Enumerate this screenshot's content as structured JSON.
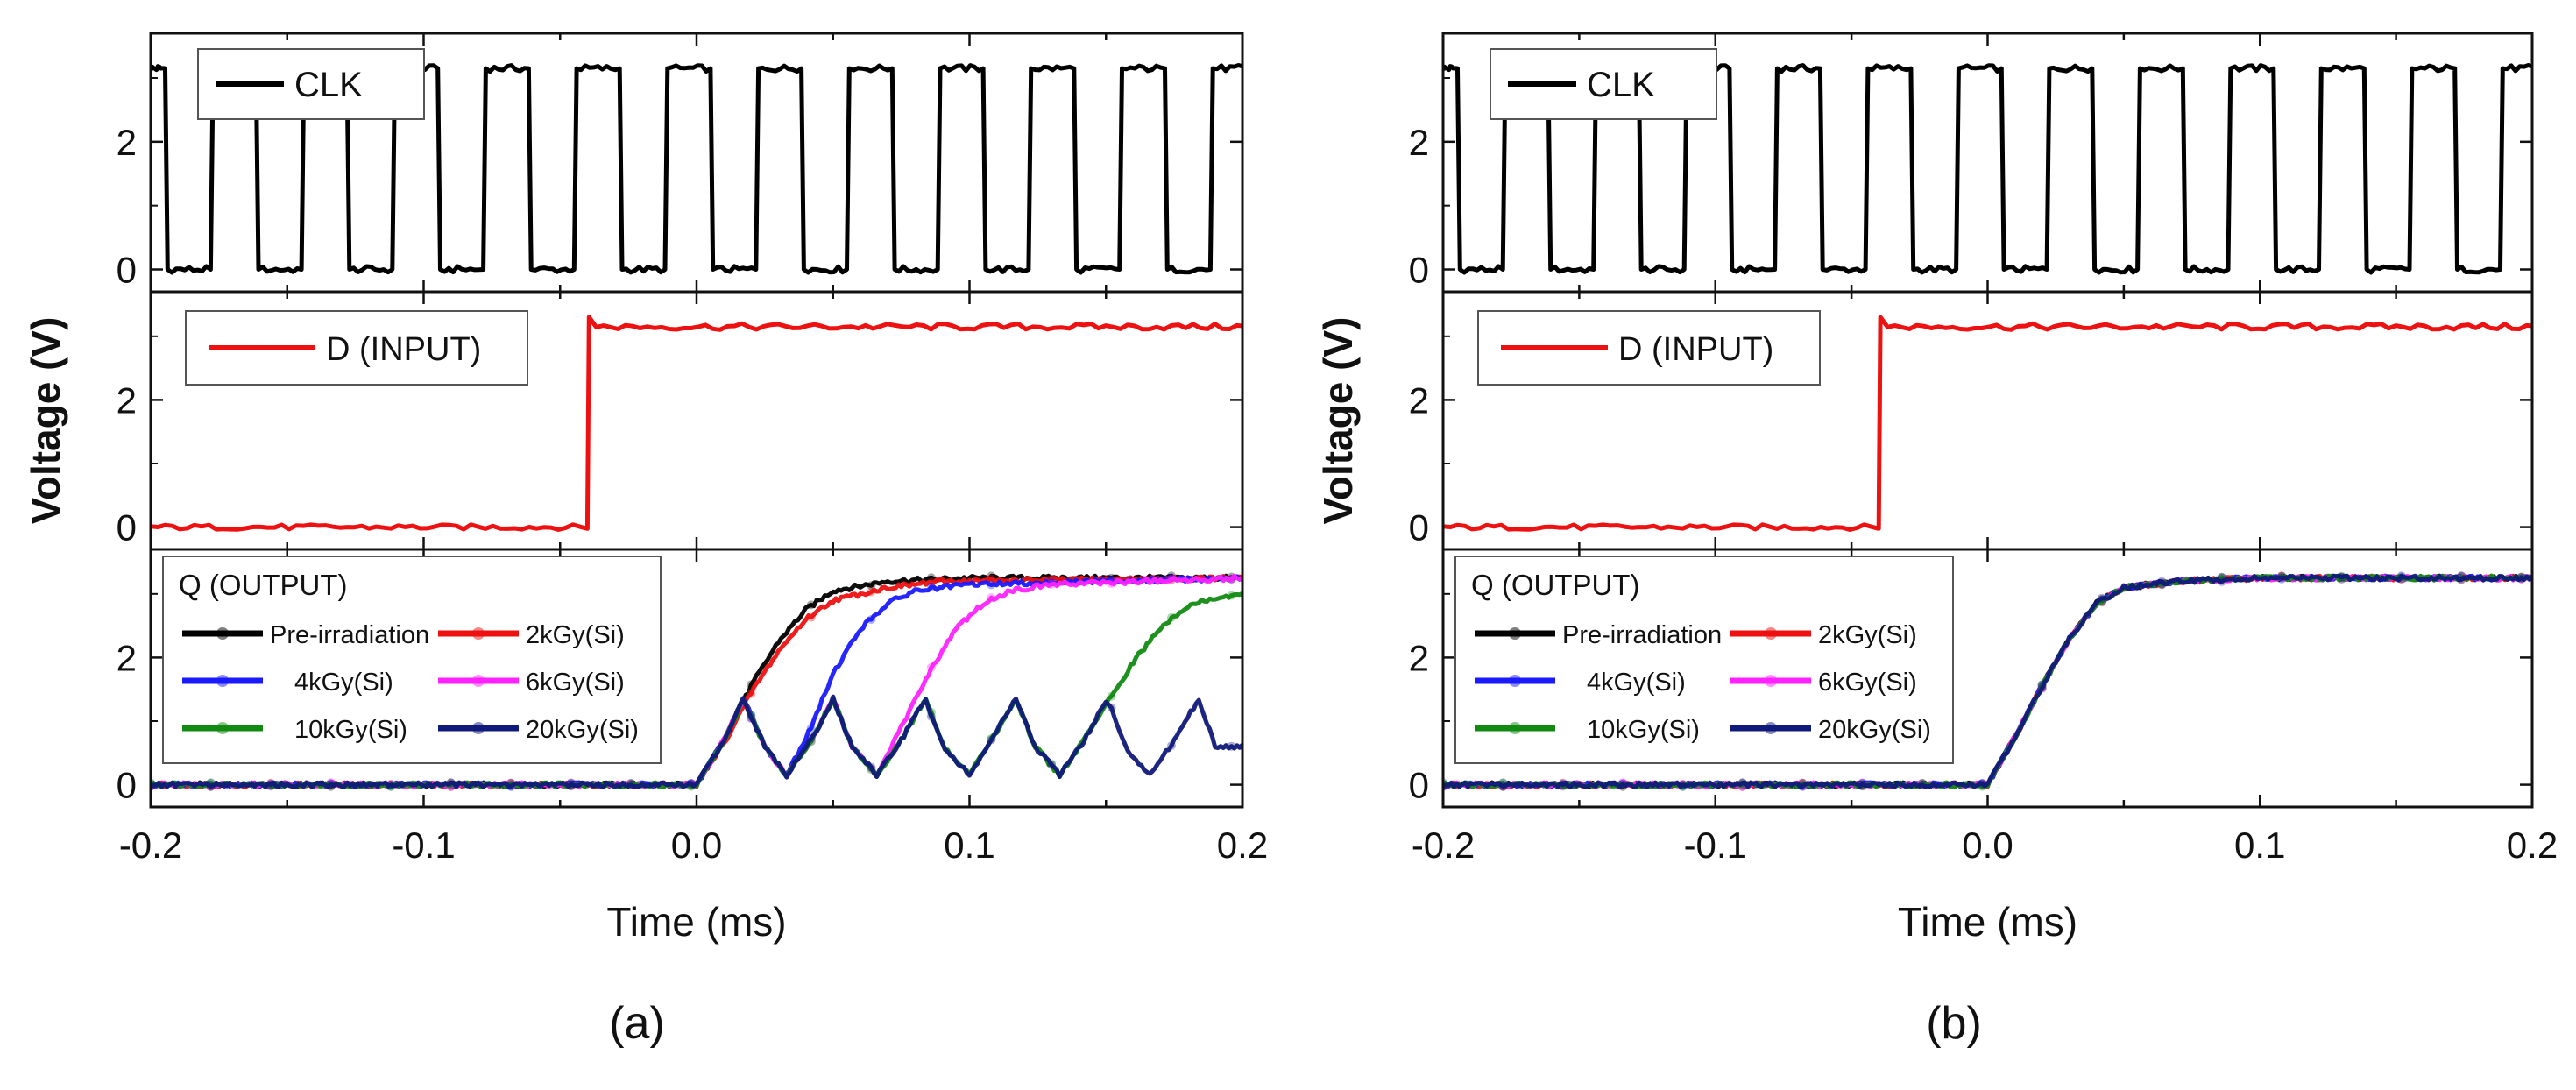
{
  "figure": {
    "panel_captions": [
      "(a)",
      "(b)"
    ],
    "colors": {
      "clk": "#000000",
      "d": "#ee1111",
      "pre": "#000000",
      "k2": "#ee1111",
      "k4": "#1a1aff",
      "k6": "#ff22ff",
      "k10": "#118a11",
      "k20": "#101a7a"
    }
  },
  "chart_data": [
    {
      "type": "line",
      "panel": "(a)",
      "xlabel": "Time (ms)",
      "ylabel": "Voltage (V)",
      "xlim": [
        -0.2,
        0.2
      ],
      "xticks": [
        "-0.2",
        "-0.1",
        "0.0",
        "0.1",
        "0.2"
      ],
      "subplots": [
        {
          "name": "clk",
          "ylim": [
            -0.35,
            3.7
          ],
          "yticks": [
            "0",
            "2"
          ],
          "legend": [
            "CLK"
          ],
          "series": [
            {
              "name": "CLK",
              "low_v": 0.0,
              "high_v": 3.15,
              "period_ms": 0.0333,
              "first_falling_edge_ms": -0.1947,
              "duty": 0.5
            }
          ]
        },
        {
          "name": "d",
          "ylim": [
            -0.35,
            3.7
          ],
          "yticks": [
            "0",
            "2"
          ],
          "legend": [
            "D (INPUT)"
          ],
          "series": [
            {
              "name": "D (INPUT)",
              "low_v": 0.0,
              "high_v": 3.2,
              "step_time_ms": -0.04
            }
          ]
        },
        {
          "name": "q",
          "ylim": [
            -0.35,
            3.7
          ],
          "yticks": [
            "0",
            "2"
          ],
          "legend_title": "Q (OUTPUT)",
          "legend": [
            "Pre-irradiation",
            "2kGy(Si)",
            "4kGy(Si)",
            "6kGy(Si)",
            "10kGy(Si)",
            "20kGy(Si)"
          ],
          "series": [
            {
              "name": "Pre-irradiation",
              "x": [
                -0.2,
                0.0,
                0.01,
                0.02,
                0.03,
                0.04,
                0.05,
                0.07,
                0.1,
                0.2
              ],
              "y": [
                0,
                0,
                0.7,
                1.55,
                2.25,
                2.75,
                3.05,
                3.2,
                3.25,
                3.25
              ]
            },
            {
              "name": "2kGy(Si)",
              "x": [
                -0.2,
                0.0,
                0.01,
                0.02,
                0.03,
                0.04,
                0.05,
                0.07,
                0.09,
                0.2
              ],
              "y": [
                0,
                0,
                0.65,
                1.45,
                2.1,
                2.6,
                2.9,
                3.1,
                3.2,
                3.25
              ]
            },
            {
              "name": "4kGy(Si)",
              "x": [
                -0.2,
                0.0,
                0.01,
                0.0172,
                0.025,
                0.033,
                0.042,
                0.05,
                0.06,
                0.07,
                0.08,
                0.1,
                0.2
              ],
              "y": [
                0,
                0,
                0.7,
                1.35,
                0.6,
                0.15,
                0.9,
                1.75,
                2.45,
                2.85,
                3.05,
                3.15,
                3.25
              ]
            },
            {
              "name": "6kGy(Si)",
              "x": [
                -0.2,
                0.0,
                0.01,
                0.0172,
                0.025,
                0.033,
                0.042,
                0.05,
                0.057,
                0.066,
                0.075,
                0.085,
                0.095,
                0.105,
                0.115,
                0.13,
                0.2
              ],
              "y": [
                0,
                0,
                0.7,
                1.35,
                0.6,
                0.15,
                0.7,
                1.35,
                0.6,
                0.15,
                0.9,
                1.75,
                2.45,
                2.85,
                3.05,
                3.15,
                3.25
              ]
            },
            {
              "name": "10kGy(Si)",
              "x": [
                -0.2,
                0.0,
                0.01,
                0.0172,
                0.025,
                0.033,
                0.042,
                0.05,
                0.057,
                0.066,
                0.075,
                0.0838,
                0.0905,
                0.1,
                0.108,
                0.117,
                0.1171,
                0.124,
                0.133,
                0.142,
                0.152,
                0.162,
                0.172,
                0.182,
                0.2
              ],
              "y": [
                0,
                0,
                0.7,
                1.35,
                0.6,
                0.15,
                0.7,
                1.35,
                0.6,
                0.15,
                0.7,
                1.35,
                0.6,
                0.15,
                0.7,
                1.35,
                1.35,
                0.6,
                0.15,
                0.7,
                1.4,
                2.05,
                2.55,
                2.85,
                3.0
              ]
            },
            {
              "name": "20kGy(Si)",
              "x": [
                -0.2,
                0.0,
                0.01,
                0.0172,
                0.025,
                0.033,
                0.042,
                0.05,
                0.057,
                0.066,
                0.075,
                0.0838,
                0.0905,
                0.1,
                0.108,
                0.117,
                0.124,
                0.133,
                0.142,
                0.1505,
                0.157,
                0.166,
                0.175,
                0.184,
                0.19,
                0.2
              ],
              "y": [
                0,
                0,
                0.7,
                1.35,
                0.6,
                0.15,
                0.7,
                1.35,
                0.6,
                0.15,
                0.7,
                1.35,
                0.6,
                0.15,
                0.7,
                1.35,
                0.6,
                0.15,
                0.7,
                1.35,
                0.6,
                0.15,
                0.7,
                1.35,
                0.6,
                0.6
              ]
            }
          ]
        }
      ]
    },
    {
      "type": "line",
      "panel": "(b)",
      "xlabel": "Time (ms)",
      "ylabel": "Voltage (V)",
      "xlim": [
        -0.2,
        0.2
      ],
      "xticks": [
        "-0.2",
        "-0.1",
        "0.0",
        "0.1",
        "0.2"
      ],
      "subplots": [
        {
          "name": "clk",
          "ylim": [
            -0.35,
            3.7
          ],
          "yticks": [
            "0",
            "2"
          ],
          "legend": [
            "CLK"
          ],
          "series": [
            {
              "name": "CLK",
              "low_v": 0.0,
              "high_v": 3.15,
              "period_ms": 0.0333,
              "first_falling_edge_ms": -0.1947,
              "duty": 0.5
            }
          ]
        },
        {
          "name": "d",
          "ylim": [
            -0.35,
            3.7
          ],
          "yticks": [
            "0",
            "2"
          ],
          "legend": [
            "D (INPUT)"
          ],
          "series": [
            {
              "name": "D (INPUT)",
              "low_v": 0.0,
              "high_v": 3.2,
              "step_time_ms": -0.04
            }
          ]
        },
        {
          "name": "q",
          "ylim": [
            -0.35,
            3.7
          ],
          "yticks": [
            "0",
            "2"
          ],
          "legend_title": "Q (OUTPUT)",
          "legend": [
            "Pre-irradiation",
            "2kGy(Si)",
            "4kGy(Si)",
            "6kGy(Si)",
            "10kGy(Si)",
            "20kGy(Si)"
          ],
          "series": [
            {
              "name": "Pre-irradiation",
              "x": [
                -0.2,
                0.0,
                0.01,
                0.02,
                0.03,
                0.04,
                0.05,
                0.07,
                0.1,
                0.2
              ],
              "y": [
                0,
                0,
                0.75,
                1.55,
                2.3,
                2.85,
                3.1,
                3.2,
                3.25,
                3.25
              ]
            },
            {
              "name": "2kGy(Si)",
              "x": [
                -0.2,
                0.0,
                0.01,
                0.02,
                0.03,
                0.04,
                0.05,
                0.07,
                0.1,
                0.2
              ],
              "y": [
                0,
                0,
                0.75,
                1.55,
                2.3,
                2.85,
                3.1,
                3.2,
                3.25,
                3.25
              ]
            },
            {
              "name": "4kGy(Si)",
              "x": [
                -0.2,
                0.0,
                0.01,
                0.02,
                0.03,
                0.04,
                0.05,
                0.07,
                0.1,
                0.2
              ],
              "y": [
                0,
                0,
                0.75,
                1.55,
                2.3,
                2.85,
                3.1,
                3.2,
                3.25,
                3.25
              ]
            },
            {
              "name": "6kGy(Si)",
              "x": [
                -0.2,
                0.0,
                0.01,
                0.02,
                0.03,
                0.04,
                0.05,
                0.07,
                0.1,
                0.2
              ],
              "y": [
                0,
                0,
                0.75,
                1.55,
                2.3,
                2.85,
                3.1,
                3.2,
                3.25,
                3.25
              ]
            },
            {
              "name": "10kGy(Si)",
              "x": [
                -0.2,
                0.0,
                0.01,
                0.02,
                0.03,
                0.04,
                0.05,
                0.07,
                0.1,
                0.2
              ],
              "y": [
                0,
                0,
                0.75,
                1.55,
                2.3,
                2.85,
                3.1,
                3.2,
                3.25,
                3.25
              ]
            },
            {
              "name": "20kGy(Si)",
              "x": [
                -0.2,
                0.0,
                0.01,
                0.02,
                0.03,
                0.04,
                0.05,
                0.07,
                0.1,
                0.2
              ],
              "y": [
                0,
                0,
                0.75,
                1.55,
                2.3,
                2.85,
                3.1,
                3.2,
                3.25,
                3.25
              ]
            }
          ]
        }
      ]
    }
  ]
}
